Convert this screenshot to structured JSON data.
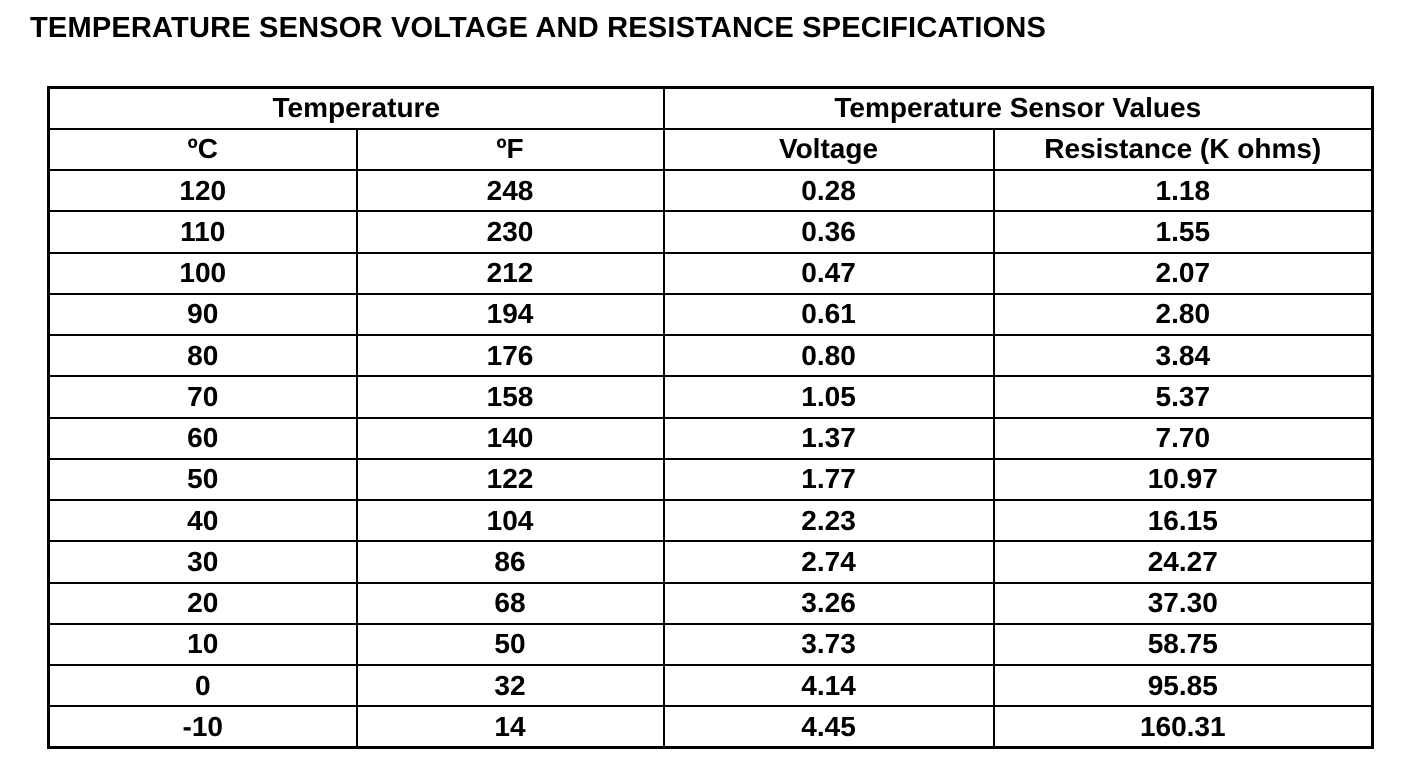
{
  "title": "TEMPERATURE SENSOR VOLTAGE AND RESISTANCE SPECIFICATIONS",
  "table": {
    "group_headers": [
      "Temperature",
      "Temperature Sensor Values"
    ],
    "columns": [
      "ºC",
      "ºF",
      "Voltage",
      "Resistance (K ohms)"
    ],
    "rows": [
      [
        "120",
        "248",
        "0.28",
        "1.18"
      ],
      [
        "110",
        "230",
        "0.36",
        "1.55"
      ],
      [
        "100",
        "212",
        "0.47",
        "2.07"
      ],
      [
        "90",
        "194",
        "0.61",
        "2.80"
      ],
      [
        "80",
        "176",
        "0.80",
        "3.84"
      ],
      [
        "70",
        "158",
        "1.05",
        "5.37"
      ],
      [
        "60",
        "140",
        "1.37",
        "7.70"
      ],
      [
        "50",
        "122",
        "1.77",
        "10.97"
      ],
      [
        "40",
        "104",
        "2.23",
        "16.15"
      ],
      [
        "30",
        "86",
        "2.74",
        "24.27"
      ],
      [
        "20",
        "68",
        "3.26",
        "37.30"
      ],
      [
        "10",
        "50",
        "3.73",
        "58.75"
      ],
      [
        "0",
        "32",
        "4.14",
        "95.85"
      ],
      [
        "-10",
        "14",
        "4.45",
        "160.31"
      ]
    ]
  }
}
